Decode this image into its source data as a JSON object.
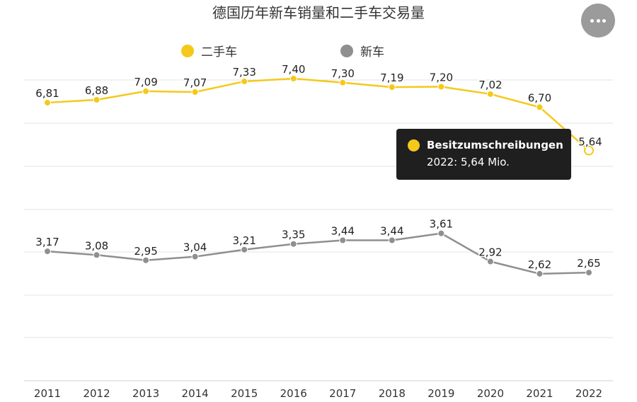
{
  "title": "德国历年新车销量和二手车交易量",
  "colors": {
    "used": "#f4c91a",
    "new": "#8f8f8f",
    "grid": "#e3e3e3",
    "tooltip_bg": "#1f1f1f"
  },
  "menu": {
    "icon": "more-horizontal-icon"
  },
  "legend": [
    {
      "label": "二手车",
      "color": "#f4c91a"
    },
    {
      "label": "新车",
      "color": "#8f8f8f"
    }
  ],
  "tooltip": {
    "series": "Besitzumschreibungen",
    "value": "2022: 5,64 Mio."
  },
  "chart_data": {
    "type": "line",
    "title": "德国历年新车销量和二手车交易量",
    "categories": [
      "2011",
      "2012",
      "2013",
      "2014",
      "2015",
      "2016",
      "2017",
      "2018",
      "2019",
      "2020",
      "2021",
      "2022"
    ],
    "ylim": [
      0,
      8
    ],
    "grid": true,
    "legend_position": "top",
    "series": [
      {
        "name": "二手车",
        "values": [
          6.81,
          6.88,
          7.09,
          7.07,
          7.33,
          7.4,
          7.3,
          7.19,
          7.2,
          7.02,
          6.7,
          5.64
        ],
        "labels": [
          "6,81",
          "6,88",
          "7,09",
          "7,07",
          "7,33",
          "7,40",
          "7,30",
          "7,19",
          "7,20",
          "7,02",
          "6,70",
          "5,64"
        ],
        "color": "#f4c91a"
      },
      {
        "name": "新车",
        "values": [
          3.17,
          3.08,
          2.95,
          3.04,
          3.21,
          3.35,
          3.44,
          3.44,
          3.61,
          2.92,
          2.62,
          2.65
        ],
        "labels": [
          "3,17",
          "3,08",
          "2,95",
          "3,04",
          "3,21",
          "3,35",
          "3,44",
          "3,44",
          "3,61",
          "2,92",
          "2,62",
          "2,65"
        ],
        "color": "#8f8f8f"
      }
    ]
  }
}
